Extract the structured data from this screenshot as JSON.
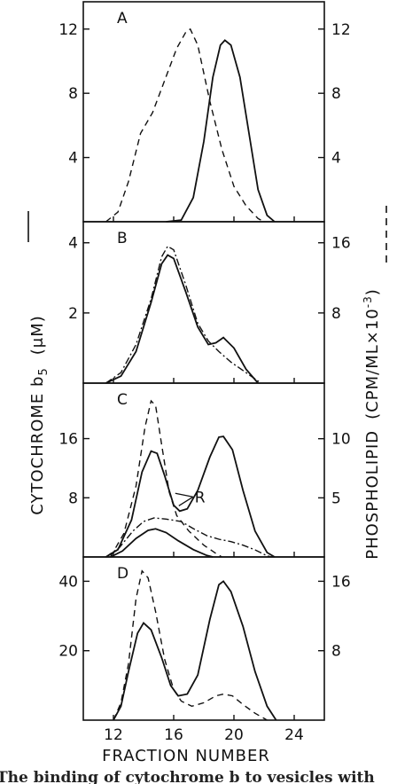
{
  "figure": {
    "left_axis_title": "CYTOCHROME b",
    "left_axis_subscript": "5",
    "left_axis_unit": "(μM)",
    "right_axis_title": "PHOSPHOLIPID",
    "right_axis_unit": "(CPM/ML×10",
    "right_axis_exponent": "-3",
    "right_axis_close": ")",
    "xlabel": "FRACTION NUMBER",
    "caption_fragment": "The binding of cytochrome b  to vesicles with"
  },
  "chart_data": [
    {
      "panel": "A",
      "type": "line",
      "xlim": [
        10,
        26
      ],
      "ylim": [
        0,
        13.7
      ],
      "ylim_right": [
        0,
        13.7
      ],
      "x_ticks": [
        12,
        16,
        20,
        24
      ],
      "left_ticks": [
        4,
        8,
        12
      ],
      "right_ticks": [
        4,
        8,
        12
      ],
      "series": [
        {
          "style": "solid",
          "axis": "left",
          "points": [
            [
              15.5,
              0
            ],
            [
              16.5,
              0.1
            ],
            [
              17.3,
              1.5
            ],
            [
              18.0,
              5.0
            ],
            [
              18.6,
              9.0
            ],
            [
              19.1,
              11.0
            ],
            [
              19.4,
              11.3
            ],
            [
              19.8,
              11.0
            ],
            [
              20.4,
              9.0
            ],
            [
              21.0,
              5.5
            ],
            [
              21.6,
              2.0
            ],
            [
              22.2,
              0.4
            ],
            [
              22.7,
              0
            ]
          ]
        },
        {
          "style": "dashed",
          "axis": "right",
          "points": [
            [
              11.5,
              0
            ],
            [
              12.3,
              0.6
            ],
            [
              13.0,
              2.5
            ],
            [
              13.8,
              5.5
            ],
            [
              14.6,
              6.8
            ],
            [
              15.4,
              8.8
            ],
            [
              16.2,
              10.8
            ],
            [
              16.8,
              11.8
            ],
            [
              17.1,
              12.0
            ],
            [
              17.6,
              11.0
            ],
            [
              18.4,
              7.5
            ],
            [
              19.2,
              4.5
            ],
            [
              20.0,
              2.2
            ],
            [
              20.8,
              1.0
            ],
            [
              21.6,
              0.2
            ],
            [
              22.0,
              0
            ]
          ]
        }
      ]
    },
    {
      "panel": "B",
      "type": "line",
      "xlim": [
        10,
        26
      ],
      "ylim": [
        0,
        4.6
      ],
      "ylim_right": [
        0,
        18.4
      ],
      "x_ticks": [
        12,
        16,
        20,
        24
      ],
      "left_ticks": [
        2,
        4
      ],
      "right_ticks": [
        8,
        16
      ],
      "series": [
        {
          "style": "solid",
          "axis": "left",
          "points": [
            [
              11.5,
              0
            ],
            [
              12.5,
              0.2
            ],
            [
              13.5,
              0.9
            ],
            [
              14.5,
              2.3
            ],
            [
              15.2,
              3.4
            ],
            [
              15.6,
              3.65
            ],
            [
              16.0,
              3.55
            ],
            [
              16.8,
              2.6
            ],
            [
              17.6,
              1.6
            ],
            [
              18.3,
              1.1
            ],
            [
              18.8,
              1.15
            ],
            [
              19.3,
              1.3
            ],
            [
              20.0,
              1.0
            ],
            [
              20.8,
              0.4
            ],
            [
              21.6,
              0
            ]
          ]
        },
        {
          "style": "dashdot",
          "axis": "right",
          "points": [
            [
              11.5,
              0
            ],
            [
              12.5,
              1.2
            ],
            [
              13.5,
              4.4
            ],
            [
              14.5,
              9.6
            ],
            [
              15.2,
              14.4
            ],
            [
              15.6,
              15.6
            ],
            [
              16.0,
              15.2
            ],
            [
              16.8,
              11.2
            ],
            [
              17.6,
              6.8
            ],
            [
              18.3,
              4.8
            ],
            [
              19.0,
              3.6
            ],
            [
              19.8,
              2.4
            ],
            [
              20.8,
              1.2
            ],
            [
              21.8,
              0
            ]
          ]
        }
      ]
    },
    {
      "panel": "C",
      "type": "line",
      "xlim": [
        10,
        26
      ],
      "ylim": [
        0,
        23.5
      ],
      "ylim_right": [
        0,
        14.7
      ],
      "x_ticks": [
        12,
        16,
        20,
        24
      ],
      "left_ticks": [
        8,
        16
      ],
      "right_ticks": [
        5,
        10
      ],
      "annotation": "R",
      "series": [
        {
          "style": "solid",
          "axis": "left",
          "points": [
            [
              11.5,
              0
            ],
            [
              12.3,
              1.0
            ],
            [
              13.2,
              5.0
            ],
            [
              13.9,
              11.5
            ],
            [
              14.5,
              14.3
            ],
            [
              14.9,
              14.0
            ],
            [
              15.4,
              11.0
            ],
            [
              16.0,
              7.0
            ],
            [
              16.4,
              6.2
            ],
            [
              16.9,
              6.5
            ],
            [
              17.6,
              9.0
            ],
            [
              18.4,
              13.5
            ],
            [
              19.0,
              16.2
            ],
            [
              19.3,
              16.3
            ],
            [
              19.9,
              14.5
            ],
            [
              20.6,
              9.0
            ],
            [
              21.4,
              3.5
            ],
            [
              22.2,
              0.6
            ],
            [
              22.7,
              0
            ]
          ]
        },
        {
          "style": "solid",
          "axis": "left",
          "points": [
            [
              11.8,
              0
            ],
            [
              12.6,
              0.8
            ],
            [
              13.5,
              2.5
            ],
            [
              14.3,
              3.6
            ],
            [
              14.8,
              3.8
            ],
            [
              15.5,
              3.3
            ],
            [
              16.3,
              2.2
            ],
            [
              17.3,
              1.0
            ],
            [
              18.2,
              0.2
            ],
            [
              18.6,
              0
            ]
          ]
        },
        {
          "style": "dashed",
          "axis": "right",
          "points": [
            [
              11.8,
              0
            ],
            [
              12.7,
              2.0
            ],
            [
              13.5,
              6.0
            ],
            [
              14.1,
              11.0
            ],
            [
              14.5,
              13.2
            ],
            [
              14.8,
              12.8
            ],
            [
              15.2,
              9.5
            ],
            [
              15.7,
              5.5
            ],
            [
              16.2,
              3.5
            ],
            [
              17.0,
              2.2
            ],
            [
              18.0,
              1.0
            ],
            [
              18.8,
              0.3
            ],
            [
              19.2,
              0
            ]
          ]
        },
        {
          "style": "dashdot",
          "axis": "right",
          "points": [
            [
              11.5,
              0
            ],
            [
              12.4,
              0.8
            ],
            [
              13.3,
              2.2
            ],
            [
              14.0,
              3.0
            ],
            [
              14.7,
              3.3
            ],
            [
              15.5,
              3.2
            ],
            [
              16.5,
              3.0
            ],
            [
              17.3,
              2.4
            ],
            [
              18.2,
              1.8
            ],
            [
              19.0,
              1.5
            ],
            [
              19.8,
              1.3
            ],
            [
              20.6,
              1.0
            ],
            [
              21.4,
              0.6
            ],
            [
              22.2,
              0.1
            ],
            [
              22.5,
              0
            ]
          ]
        }
      ]
    },
    {
      "panel": "D",
      "type": "line",
      "xlim": [
        10,
        26
      ],
      "ylim": [
        0,
        47
      ],
      "ylim_right": [
        0,
        18.8
      ],
      "x_ticks": [
        12,
        16,
        20,
        24
      ],
      "left_ticks": [
        20,
        40
      ],
      "right_ticks": [
        8,
        16
      ],
      "series": [
        {
          "style": "solid",
          "axis": "left",
          "points": [
            [
              12.0,
              0
            ],
            [
              12.5,
              4.0
            ],
            [
              13.0,
              14.0
            ],
            [
              13.6,
              25.0
            ],
            [
              14.0,
              28.0
            ],
            [
              14.5,
              26.0
            ],
            [
              15.2,
              18.0
            ],
            [
              15.8,
              10.0
            ],
            [
              16.3,
              7.0
            ],
            [
              16.9,
              7.5
            ],
            [
              17.6,
              13.0
            ],
            [
              18.4,
              29.0
            ],
            [
              19.0,
              39.0
            ],
            [
              19.3,
              40.0
            ],
            [
              19.8,
              37.0
            ],
            [
              20.6,
              27.0
            ],
            [
              21.4,
              14.0
            ],
            [
              22.2,
              4.0
            ],
            [
              22.8,
              0
            ]
          ]
        },
        {
          "style": "dashed",
          "axis": "right",
          "points": [
            [
              12.0,
              0
            ],
            [
              12.5,
              2.0
            ],
            [
              13.0,
              6.5
            ],
            [
              13.5,
              14.0
            ],
            [
              13.9,
              17.2
            ],
            [
              14.3,
              16.4
            ],
            [
              14.8,
              12.5
            ],
            [
              15.4,
              7.0
            ],
            [
              16.0,
              3.5
            ],
            [
              16.5,
              2.2
            ],
            [
              17.2,
              1.6
            ],
            [
              18.0,
              2.0
            ],
            [
              18.8,
              2.8
            ],
            [
              19.3,
              3.0
            ],
            [
              19.9,
              2.8
            ],
            [
              20.6,
              1.8
            ],
            [
              21.4,
              0.8
            ],
            [
              22.2,
              0
            ]
          ]
        }
      ]
    }
  ]
}
